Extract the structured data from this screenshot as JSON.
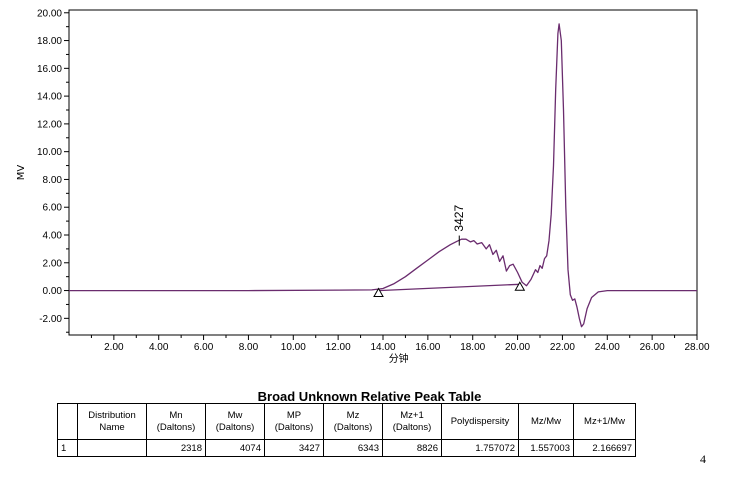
{
  "chart_data": {
    "type": "line",
    "xlabel": "分钟",
    "ylabel": "MV",
    "xlim": [
      0,
      28
    ],
    "ylim": [
      -3.2,
      20.2
    ],
    "x_ticks": [
      "2.00",
      "4.00",
      "6.00",
      "8.00",
      "10.00",
      "12.00",
      "14.00",
      "16.00",
      "18.00",
      "20.00",
      "22.00",
      "24.00",
      "26.00",
      "28.00"
    ],
    "y_ticks": [
      "-2.00",
      "0.00",
      "2.00",
      "4.00",
      "6.00",
      "8.00",
      "10.00",
      "12.00",
      "14.00",
      "16.00",
      "18.00",
      "20.00"
    ],
    "grid": false,
    "series": [
      {
        "points": [
          [
            0,
            0
          ],
          [
            4,
            0
          ],
          [
            8,
            0
          ],
          [
            12,
            0.03
          ],
          [
            13.5,
            0.05
          ],
          [
            14,
            0.15
          ],
          [
            14.5,
            0.5
          ],
          [
            15,
            1.0
          ],
          [
            15.5,
            1.6
          ],
          [
            16,
            2.2
          ],
          [
            16.5,
            2.8
          ],
          [
            17,
            3.3
          ],
          [
            17.3,
            3.55
          ],
          [
            17.5,
            3.7
          ],
          [
            17.7,
            3.7
          ],
          [
            17.9,
            3.5
          ],
          [
            18.05,
            3.6
          ],
          [
            18.2,
            3.35
          ],
          [
            18.4,
            3.45
          ],
          [
            18.6,
            3.0
          ],
          [
            18.75,
            3.3
          ],
          [
            18.9,
            2.6
          ],
          [
            19.05,
            2.9
          ],
          [
            19.2,
            2.1
          ],
          [
            19.35,
            2.5
          ],
          [
            19.5,
            1.4
          ],
          [
            19.65,
            1.8
          ],
          [
            19.8,
            1.9
          ],
          [
            20.0,
            1.3
          ],
          [
            20.2,
            0.6
          ],
          [
            20.4,
            0.35
          ],
          [
            20.6,
            0.8
          ],
          [
            20.8,
            1.5
          ],
          [
            20.9,
            1.3
          ],
          [
            21.0,
            1.8
          ],
          [
            21.1,
            1.6
          ],
          [
            21.2,
            2.3
          ],
          [
            21.3,
            2.5
          ],
          [
            21.4,
            3.6
          ],
          [
            21.5,
            5.5
          ],
          [
            21.6,
            9.0
          ],
          [
            21.7,
            14.5
          ],
          [
            21.8,
            18.5
          ],
          [
            21.85,
            19.2
          ],
          [
            21.95,
            18.0
          ],
          [
            22.05,
            13.0
          ],
          [
            22.15,
            6.0
          ],
          [
            22.25,
            1.5
          ],
          [
            22.35,
            -0.3
          ],
          [
            22.45,
            -0.7
          ],
          [
            22.55,
            -0.6
          ],
          [
            22.65,
            -1.2
          ],
          [
            22.75,
            -2.0
          ],
          [
            22.85,
            -2.6
          ],
          [
            22.95,
            -2.4
          ],
          [
            23.1,
            -1.3
          ],
          [
            23.3,
            -0.5
          ],
          [
            23.6,
            -0.1
          ],
          [
            24,
            0
          ],
          [
            26,
            0
          ],
          [
            28,
            0
          ]
        ]
      },
      {
        "points": [
          [
            13.8,
            0.0
          ],
          [
            20.1,
            0.45
          ]
        ]
      }
    ],
    "annotations": {
      "peak_label": "3427",
      "peak_x": 17.4,
      "peak_y": 3.6,
      "markers": [
        [
          13.8,
          0.0
        ],
        [
          20.1,
          0.45
        ]
      ]
    }
  },
  "table": {
    "title": "Broad Unknown Relative Peak Table",
    "headers": [
      [
        "",
        ""
      ],
      [
        "Distribution",
        "Name"
      ],
      [
        "Mn",
        "(Daltons)"
      ],
      [
        "Mw",
        "(Daltons)"
      ],
      [
        "MP",
        "(Daltons)"
      ],
      [
        "Mz",
        "(Daltons)"
      ],
      [
        "Mz+1",
        "(Daltons)"
      ],
      [
        "Polydispersity",
        ""
      ],
      [
        "Mz/Mw",
        ""
      ],
      [
        "Mz+1/Mw",
        ""
      ]
    ],
    "rows": [
      [
        "1",
        "",
        "2318",
        "4074",
        "3427",
        "6343",
        "8826",
        "1.757072",
        "1.557003",
        "2.166697"
      ]
    ]
  },
  "page_number": "4",
  "colors": {
    "trace": "#6a2c6e",
    "axis": "#000000"
  }
}
